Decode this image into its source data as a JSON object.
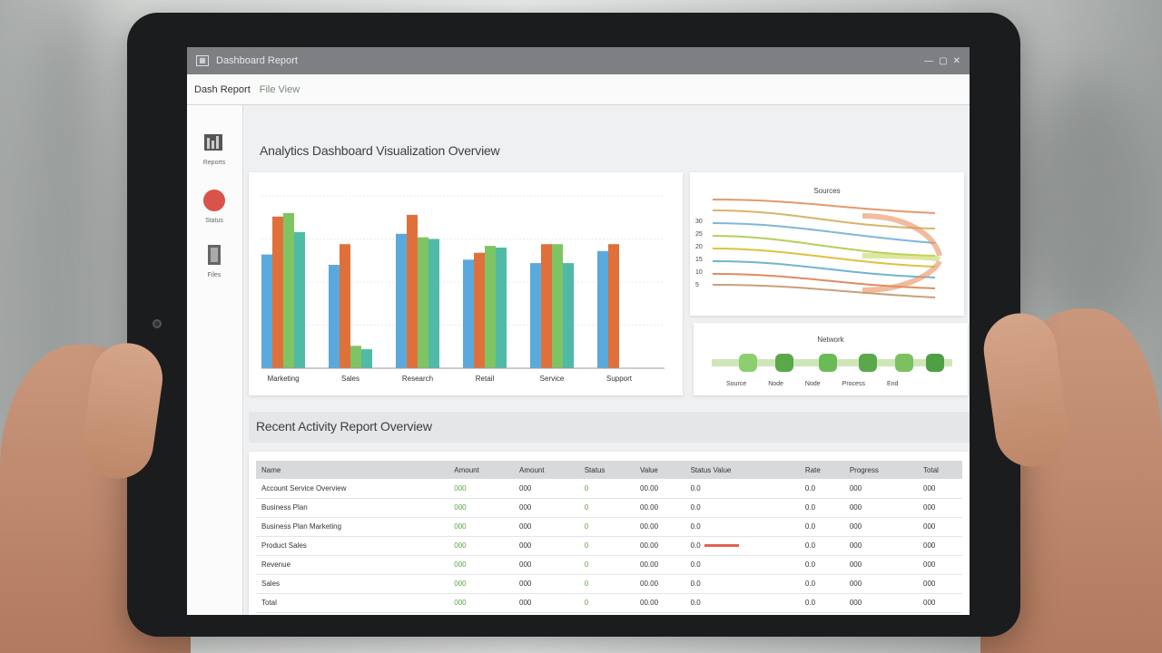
{
  "window": {
    "title": "Dashboard Report",
    "controls": [
      "—",
      "▢",
      "✕"
    ]
  },
  "menubar": {
    "items": [
      "Dash Report",
      "File View"
    ]
  },
  "sidebar": {
    "items": [
      {
        "label": "Reports",
        "icon": "bar-chart-icon"
      },
      {
        "label": "Status",
        "icon": "red-dot-icon"
      },
      {
        "label": "Files",
        "icon": "document-icon"
      }
    ]
  },
  "sections": {
    "top_title": "Analytics Dashboard Visualization Overview",
    "bottom_title": "Recent Activity Report Overview"
  },
  "colors": {
    "blue": "#5aa9dd",
    "orange": "#e0703a",
    "green": "#7fc463",
    "teal": "#4fbaa6"
  },
  "chart_data": [
    {
      "type": "bar",
      "categories": [
        "Marketing",
        "Sales",
        "Research",
        "Retail",
        "Service",
        "Support"
      ],
      "series": [
        {
          "values": [
            66,
            60,
            78,
            63,
            61,
            68
          ]
        },
        {
          "values": [
            88,
            72,
            89,
            67,
            72,
            72
          ]
        },
        {
          "values": [
            90,
            13,
            76,
            71,
            72,
            0
          ]
        },
        {
          "values": [
            79,
            11,
            75,
            70,
            61,
            0
          ]
        }
      ],
      "ylim": [
        0,
        100
      ],
      "grid": true
    }
  ],
  "flow_panel": {
    "title": "Sources",
    "left_labels": [
      "30",
      "25",
      "20",
      "15",
      "10",
      "5"
    ]
  },
  "nodes_panel": {
    "title": "Network",
    "labels": [
      "Source",
      "Node",
      "Node",
      "Process",
      "End"
    ]
  },
  "table": {
    "headers": [
      "Name",
      "Amount",
      "Amount",
      "Status",
      "Value",
      "Status Value",
      "Rate",
      "Progress",
      "Total"
    ],
    "rows": [
      [
        "Account Service Overview",
        "000",
        "000",
        "0",
        "00.00",
        "0.0",
        "0.0",
        "000",
        "000"
      ],
      [
        "Business Plan",
        "000",
        "000",
        "0",
        "00.00",
        "0.0",
        "0.0",
        "000",
        "000"
      ],
      [
        "Business Plan Marketing",
        "000",
        "000",
        "0",
        "00.00",
        "0.0",
        "0.0",
        "000",
        "000"
      ],
      [
        "Product Sales",
        "000",
        "000",
        "0",
        "00.00",
        "0.0",
        "0.0",
        "000",
        "000"
      ],
      [
        "Revenue",
        "000",
        "000",
        "0",
        "00.00",
        "0.0",
        "0.0",
        "000",
        "000"
      ],
      [
        "Sales",
        "000",
        "000",
        "0",
        "00.00",
        "0.0",
        "0.0",
        "000",
        "000"
      ],
      [
        "Total",
        "000",
        "000",
        "0",
        "00.00",
        "0.0",
        "0.0",
        "000",
        "000"
      ]
    ]
  }
}
